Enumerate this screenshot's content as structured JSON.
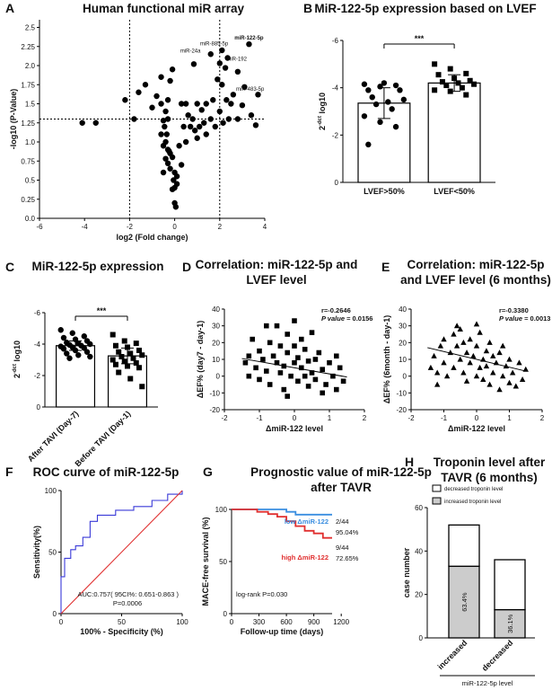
{
  "figure": {
    "panel_labels": [
      "A",
      "B",
      "C",
      "D",
      "E",
      "F",
      "G",
      "H"
    ]
  },
  "chart_data": [
    {
      "id": "A",
      "type": "scatter",
      "title": "Human functional miR array",
      "xlabel": "log2 (Fold change)",
      "ylabel": "-log10 (P-Value)",
      "xlim": [
        -6,
        4
      ],
      "ylim": [
        0,
        2.6
      ],
      "xticks": [
        "-6",
        "-4",
        "-2",
        "0",
        "2",
        "4"
      ],
      "yticks": [
        "0.0",
        "0.25",
        "0.5",
        "0.75",
        "1.0",
        "1.25",
        "1.5",
        "1.75",
        "2.0",
        "2.25",
        "2.5"
      ],
      "vlines": [
        -2,
        2
      ],
      "hline": 1.3,
      "labels": [
        {
          "text": "miR-122-5p",
          "x": 3.3,
          "y": 2.32,
          "bold": true
        },
        {
          "text": "miR-885-5p",
          "x": 1.75,
          "y": 2.24
        },
        {
          "text": "miR-24a",
          "x": 0.7,
          "y": 2.15
        },
        {
          "text": "miR-192",
          "x": 2.75,
          "y": 2.04
        },
        {
          "text": "miR-483-5p",
          "x": 3.35,
          "y": 1.65
        }
      ],
      "points": [
        [
          3.3,
          2.28
        ],
        [
          1.6,
          2.15
        ],
        [
          2.1,
          2.2
        ],
        [
          2.35,
          2.1
        ],
        [
          0.85,
          2.02
        ],
        [
          2.25,
          1.97
        ],
        [
          2.0,
          2.03
        ],
        [
          2.8,
          1.92
        ],
        [
          3.7,
          1.62
        ],
        [
          3.1,
          1.72
        ],
        [
          2.6,
          1.62
        ],
        [
          1.9,
          1.82
        ],
        [
          2.1,
          1.75
        ],
        [
          2.3,
          1.55
        ],
        [
          2.5,
          1.5
        ],
        [
          3.0,
          1.48
        ],
        [
          3.4,
          1.35
        ],
        [
          3.6,
          1.22
        ],
        [
          2.8,
          1.3
        ],
        [
          2.4,
          1.3
        ],
        [
          2.0,
          1.4
        ],
        [
          1.7,
          1.55
        ],
        [
          1.4,
          1.5
        ],
        [
          1.2,
          1.42
        ],
        [
          1.0,
          1.5
        ],
        [
          0.8,
          1.3
        ],
        [
          0.6,
          1.35
        ],
        [
          0.5,
          1.5
        ],
        [
          0.3,
          1.5
        ],
        [
          1.6,
          1.3
        ],
        [
          1.3,
          1.25
        ],
        [
          1.1,
          1.2
        ],
        [
          0.9,
          1.15
        ],
        [
          0.7,
          1.2
        ],
        [
          0.4,
          1.2
        ],
        [
          1.8,
          1.2
        ],
        [
          2.15,
          1.25
        ],
        [
          1.4,
          1.1
        ],
        [
          1.0,
          1.05
        ],
        [
          0.5,
          1.0
        ],
        [
          0.2,
          0.95
        ],
        [
          -0.2,
          1.8
        ],
        [
          -0.8,
          1.6
        ],
        [
          -1.3,
          1.75
        ],
        [
          -1.6,
          1.65
        ],
        [
          -1.0,
          1.45
        ],
        [
          -0.6,
          1.5
        ],
        [
          -0.4,
          1.4
        ],
        [
          -0.3,
          1.3
        ],
        [
          -0.5,
          1.28
        ],
        [
          -0.45,
          1.2
        ],
        [
          -0.35,
          1.1
        ],
        [
          -0.4,
          1.0
        ],
        [
          -0.5,
          0.95
        ],
        [
          -0.3,
          0.9
        ],
        [
          -0.2,
          0.85
        ],
        [
          -0.1,
          0.8
        ],
        [
          -0.4,
          0.78
        ],
        [
          -0.3,
          0.72
        ],
        [
          -0.2,
          0.65
        ],
        [
          0.0,
          0.6
        ],
        [
          0.1,
          0.55
        ],
        [
          -0.05,
          0.5
        ],
        [
          0.1,
          0.45
        ],
        [
          0.0,
          0.4
        ],
        [
          -0.1,
          0.38
        ],
        [
          -0.6,
          1.85
        ],
        [
          -0.1,
          1.95
        ],
        [
          -1.8,
          1.3
        ],
        [
          -2.2,
          1.55
        ],
        [
          -0.3,
          1.55
        ],
        [
          -0.6,
          1.1
        ],
        [
          0.0,
          0.2
        ],
        [
          0.05,
          0.15
        ],
        [
          -4.1,
          1.25
        ],
        [
          -3.5,
          1.25
        ],
        [
          -0.5,
          0.6
        ],
        [
          0.3,
          0.7
        ],
        [
          -0.25,
          0.88
        ]
      ]
    },
    {
      "id": "B",
      "type": "bar",
      "title": "MiR-122-5p expression based on LVEF",
      "ylabel": "2-dct log10",
      "categories": [
        "LVEF>50%",
        "LVEF<50%"
      ],
      "values": [
        -3.35,
        -4.2
      ],
      "sd": [
        0.65,
        0.35
      ],
      "ylim": [
        0,
        -6
      ],
      "yticks": [
        "0",
        "-2",
        "-4",
        "-6"
      ],
      "significance": "***",
      "points": [
        [
          -4.15,
          -4.05,
          -4.1,
          -3.9,
          -4.2,
          -3.9,
          -3.6,
          -3.4,
          -3.5,
          -3.3,
          -3.1,
          -2.8,
          -2.55,
          -2.35,
          -1.6
        ],
        [
          -5.0,
          -4.8,
          -4.6,
          -4.55,
          -4.4,
          -4.3,
          -4.25,
          -4.2,
          -4.15,
          -4.1,
          -4.0,
          -3.9,
          -3.85,
          -3.7
        ]
      ]
    },
    {
      "id": "C",
      "type": "bar",
      "title": "MiR-122-5p expression",
      "ylabel": "2-dct log10",
      "categories": [
        "After TAVI (Day-7)",
        "Before TAVI (Day-1)"
      ],
      "values": [
        -3.9,
        -3.25
      ],
      "sd": [
        0.3,
        0.5
      ],
      "ylim": [
        0,
        -6
      ],
      "yticks": [
        "0",
        "-2",
        "-4",
        "-6"
      ],
      "significance": "***",
      "points": [
        [
          -4.9,
          -4.7,
          -4.5,
          -4.4,
          -4.3,
          -4.2,
          -4.1,
          -4.05,
          -4.0,
          -3.95,
          -3.9,
          -3.85,
          -3.8,
          -3.75,
          -3.7,
          -3.6,
          -3.5,
          -3.4,
          -3.3,
          -3.2,
          -3.1
        ],
        [
          -4.6,
          -4.2,
          -4.05,
          -3.9,
          -3.8,
          -3.6,
          -3.5,
          -3.4,
          -3.3,
          -3.2,
          -3.1,
          -3.0,
          -2.9,
          -2.8,
          -2.7,
          -2.6,
          -2.5,
          -2.2,
          -1.8,
          -1.3
        ]
      ]
    },
    {
      "id": "D",
      "type": "scatter",
      "title": "Correlation: miR-122-5p and LVEF level",
      "xlabel": "ΔmiR-122 level",
      "ylabel": "ΔEF% (day7 - day-1)",
      "xlim": [
        -2,
        2
      ],
      "ylim": [
        -20,
        40
      ],
      "xticks": [
        "-2",
        "-1",
        "0",
        "1",
        "2"
      ],
      "yticks": [
        "-20",
        "-10",
        "0",
        "10",
        "20",
        "30",
        "40"
      ],
      "r": "r=-0.2646",
      "p_label": "P value",
      "p_value": "= 0.0156",
      "fit": [
        [
          -1.5,
          10.5
        ],
        [
          1.5,
          -0.5
        ]
      ],
      "points": [
        [
          -1.4,
          8
        ],
        [
          -1.3,
          12
        ],
        [
          -1.2,
          22
        ],
        [
          -1.1,
          5
        ],
        [
          -1.0,
          -2
        ],
        [
          -1.0,
          15
        ],
        [
          -0.9,
          10
        ],
        [
          -0.8,
          3
        ],
        [
          -0.7,
          20
        ],
        [
          -0.7,
          -5
        ],
        [
          -0.6,
          12
        ],
        [
          -0.5,
          8
        ],
        [
          -0.5,
          30
        ],
        [
          -0.4,
          18
        ],
        [
          -0.4,
          2
        ],
        [
          -0.3,
          -8
        ],
        [
          -0.3,
          6
        ],
        [
          -0.2,
          14
        ],
        [
          -0.2,
          25
        ],
        [
          -0.1,
          0
        ],
        [
          0.0,
          8
        ],
        [
          0.0,
          18
        ],
        [
          0.1,
          -3
        ],
        [
          0.1,
          11
        ],
        [
          0.2,
          22
        ],
        [
          0.2,
          5
        ],
        [
          0.3,
          0
        ],
        [
          0.3,
          16
        ],
        [
          0.4,
          -6
        ],
        [
          0.4,
          9
        ],
        [
          0.5,
          2
        ],
        [
          0.5,
          26
        ],
        [
          0.6,
          -2
        ],
        [
          0.7,
          14
        ],
        [
          0.8,
          4
        ],
        [
          0.9,
          -5
        ],
        [
          1.0,
          8
        ],
        [
          1.1,
          0
        ],
        [
          1.2,
          -8
        ],
        [
          1.3,
          5
        ],
        [
          1.4,
          -3
        ],
        [
          -0.8,
          30
        ],
        [
          0.0,
          33
        ],
        [
          -1.3,
          0
        ],
        [
          0.6,
          10
        ],
        [
          -0.2,
          -12
        ],
        [
          0.8,
          -10
        ],
        [
          1.2,
          12
        ]
      ]
    },
    {
      "id": "E",
      "type": "scatter",
      "title": "Correlation: miR-122-5p and LVEF level (6 months)",
      "xlabel": "ΔmiR-122 level",
      "ylabel": "ΔEF% (6month - day-1)",
      "xlim": [
        -2,
        2
      ],
      "ylim": [
        -20,
        40
      ],
      "xticks": [
        "-2",
        "-1",
        "0",
        "1",
        "2"
      ],
      "yticks": [
        "-20",
        "-10",
        "0",
        "10",
        "20",
        "30",
        "40"
      ],
      "r": "r=-0.3380",
      "p_label": "P value",
      "p_value": "= 0.0013",
      "fit": [
        [
          -1.5,
          17
        ],
        [
          1.5,
          3
        ]
      ],
      "points": [
        [
          -1.4,
          5
        ],
        [
          -1.3,
          12
        ],
        [
          -1.2,
          2
        ],
        [
          -1.1,
          18
        ],
        [
          -1.0,
          8
        ],
        [
          -1.0,
          22
        ],
        [
          -0.9,
          0
        ],
        [
          -0.8,
          14
        ],
        [
          -0.7,
          25
        ],
        [
          -0.7,
          5
        ],
        [
          -0.6,
          18
        ],
        [
          -0.5,
          10
        ],
        [
          -0.5,
          28
        ],
        [
          -0.4,
          2
        ],
        [
          -0.4,
          20
        ],
        [
          -0.3,
          14
        ],
        [
          -0.3,
          -3
        ],
        [
          -0.2,
          8
        ],
        [
          -0.2,
          22
        ],
        [
          -0.1,
          12
        ],
        [
          0.0,
          0
        ],
        [
          0.0,
          18
        ],
        [
          0.1,
          5
        ],
        [
          0.1,
          26
        ],
        [
          0.2,
          10
        ],
        [
          0.2,
          -2
        ],
        [
          0.3,
          15
        ],
        [
          0.3,
          6
        ],
        [
          0.4,
          20
        ],
        [
          0.4,
          -5
        ],
        [
          0.5,
          12
        ],
        [
          0.5,
          2
        ],
        [
          0.6,
          8
        ],
        [
          0.7,
          -8
        ],
        [
          0.7,
          14
        ],
        [
          0.8,
          0
        ],
        [
          0.9,
          6
        ],
        [
          1.0,
          -4
        ],
        [
          1.0,
          10
        ],
        [
          1.1,
          2
        ],
        [
          1.2,
          -6
        ],
        [
          1.3,
          8
        ],
        [
          1.4,
          -2
        ],
        [
          1.5,
          4
        ],
        [
          -0.6,
          30
        ],
        [
          0.0,
          31
        ],
        [
          -1.2,
          -5
        ],
        [
          0.8,
          18
        ]
      ]
    },
    {
      "id": "F",
      "type": "line",
      "title": "ROC curve of miR-122-5p",
      "xlabel": "100% - Specificity (%)",
      "ylabel": "Sensitivity(%)",
      "xlim": [
        0,
        100
      ],
      "ylim": [
        0,
        100
      ],
      "xticks": [
        "0",
        "50",
        "100"
      ],
      "yticks": [
        "0",
        "50",
        "100"
      ],
      "auc_text": "AUC:0.757( 95CI%: 0.651-0.863 )",
      "p_text": "P=0.0006",
      "series": [
        {
          "color": "#3a3ad8",
          "values": [
            [
              0,
              0
            ],
            [
              0,
              30
            ],
            [
              3,
              30
            ],
            [
              3,
              45
            ],
            [
              8,
              45
            ],
            [
              8,
              52
            ],
            [
              12,
              52
            ],
            [
              12,
              55
            ],
            [
              18,
              55
            ],
            [
              18,
              62
            ],
            [
              24,
              62
            ],
            [
              24,
              75
            ],
            [
              30,
              75
            ],
            [
              30,
              80
            ],
            [
              45,
              80
            ],
            [
              45,
              84
            ],
            [
              60,
              84
            ],
            [
              60,
              87
            ],
            [
              75,
              87
            ],
            [
              75,
              92
            ],
            [
              88,
              92
            ],
            [
              88,
              97
            ],
            [
              100,
              97
            ],
            [
              100,
              100
            ]
          ]
        },
        {
          "color": "#e03030",
          "values": [
            [
              0,
              0
            ],
            [
              100,
              100
            ]
          ]
        }
      ]
    },
    {
      "id": "G",
      "type": "line",
      "title": "Prognostic value of miR-122-5p after TAVR",
      "xlabel": "Follow-up time (days)",
      "ylabel": "MACE-free survival (%)",
      "xlim": [
        0,
        1200
      ],
      "ylim": [
        0,
        100
      ],
      "xticks": [
        "0",
        "300",
        "600",
        "900",
        "1200"
      ],
      "yticks": [
        "0",
        "50",
        "100"
      ],
      "logrank": "log-rank P=0.030",
      "series": [
        {
          "name": "low ΔmiR-122",
          "color": "#3a8ee0",
          "count": "2/44",
          "pct": "95.04%",
          "values": [
            [
              0,
              100
            ],
            [
              600,
              100
            ],
            [
              600,
              97.7
            ],
            [
              700,
              97.7
            ],
            [
              700,
              95
            ],
            [
              1100,
              95
            ]
          ]
        },
        {
          "name": "high ΔmiR-122",
          "color": "#e03030",
          "count": "9/44",
          "pct": "72.65%",
          "values": [
            [
              0,
              100
            ],
            [
              280,
              100
            ],
            [
              280,
              97.7
            ],
            [
              400,
              97.7
            ],
            [
              400,
              95.5
            ],
            [
              500,
              95.5
            ],
            [
              500,
              93
            ],
            [
              600,
              93
            ],
            [
              600,
              88.6
            ],
            [
              700,
              88.6
            ],
            [
              700,
              84
            ],
            [
              800,
              84
            ],
            [
              800,
              79.5
            ],
            [
              900,
              79.5
            ],
            [
              900,
              77
            ],
            [
              1000,
              77
            ],
            [
              1000,
              72.65
            ],
            [
              1100,
              72.65
            ]
          ]
        }
      ]
    },
    {
      "id": "H",
      "type": "bar",
      "title": "Troponin level after TAVR (6 months)",
      "ylabel": "case number",
      "xlabel": "miR-122-5p level",
      "categories": [
        "increased",
        "decreased"
      ],
      "ylim": [
        0,
        60
      ],
      "yticks": [
        "0",
        "20",
        "40",
        "60"
      ],
      "series": [
        {
          "name": "increased troponin level",
          "color": "#cccccc",
          "values": [
            33,
            13
          ]
        },
        {
          "name": "decreased troponin level",
          "color": "#ffffff",
          "values": [
            19,
            23
          ]
        }
      ],
      "percent_labels": [
        "63.4%",
        "36.1%"
      ]
    }
  ]
}
